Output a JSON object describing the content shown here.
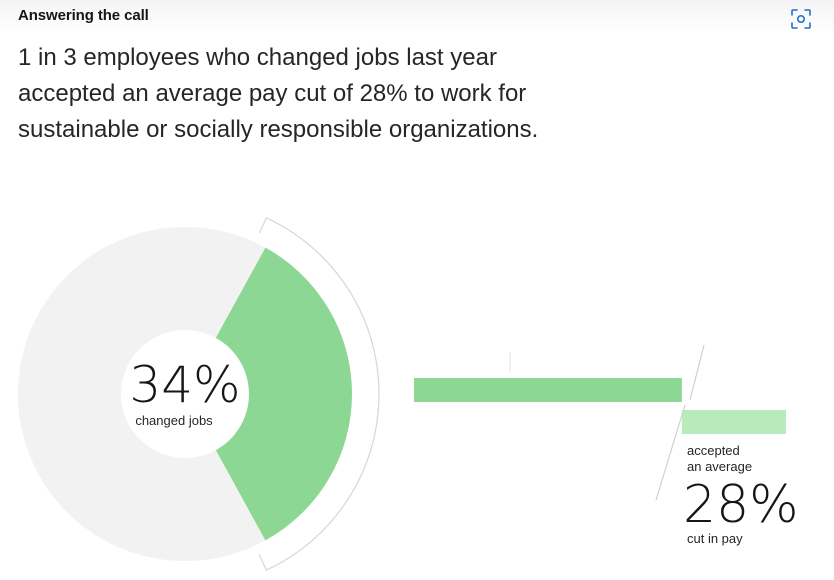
{
  "header": {
    "eyebrow": "Answering the call",
    "headline": "1 in 3 employees who changed jobs last year accepted an average pay cut of 28% to work for sustainable or socially responsible organizations.",
    "expand_icon": "expand-icon"
  },
  "chart_data": {
    "type": "pie",
    "categories": [
      "changed jobs",
      "accepted an average cut in pay"
    ],
    "values": [
      34,
      28
    ],
    "unit": "%",
    "labels": {
      "changed_jobs_value": "34%",
      "changed_jobs_caption": "changed jobs",
      "paycut_prefix_1": "accepted",
      "paycut_prefix_2": "an average",
      "paycut_value": "28%",
      "paycut_caption": "cut in pay"
    }
  },
  "colors": {
    "accent": "#8cd793",
    "accent_light": "#b9eabc",
    "ring_base": "#f2f2f2",
    "outline": "#d6d6d6"
  }
}
